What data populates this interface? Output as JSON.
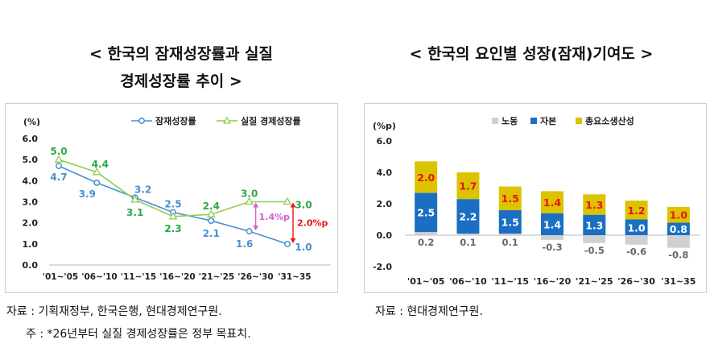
{
  "left_title": {
    "line1": "< 한국의 잠재성장률과 실질",
    "line2": "경제성장률 추이 >"
  },
  "right_title": "< 한국의 요인별 성장(잠재)기여도 >",
  "notes": {
    "left_source": "자료 : 기획재정부, 한국은행, 현대경제연구원.",
    "left_footnote": "주 : *26년부터 실질 경제성장률은 정부 목표치.",
    "right_source": "자료 : 현대경제연구원."
  },
  "chart_data": [
    {
      "type": "line",
      "ylabel": "(%)",
      "ylim": [
        0,
        6
      ],
      "yticks": [
        "0.0",
        "1.0",
        "2.0",
        "3.0",
        "4.0",
        "5.0",
        "6.0"
      ],
      "categories": [
        "'01~'05",
        "'06~'10",
        "'11~'15",
        "'16~'20",
        "'21~'25",
        "'26~'30",
        "'31~35"
      ],
      "series": [
        {
          "name": "잠재성장률",
          "color": "#4a8fd0",
          "values": [
            4.7,
            3.9,
            3.2,
            2.5,
            2.1,
            1.6,
            1.0
          ],
          "labels": [
            "4.7",
            "3.9",
            "3.2",
            "2.5",
            "2.1",
            "1.6",
            "1.0"
          ]
        },
        {
          "name": "실질 경제성장률",
          "color": "#8fce52",
          "label_color": "#2aa84a",
          "values": [
            5.0,
            4.4,
            3.1,
            2.3,
            2.4,
            3.0,
            3.0
          ],
          "labels": [
            "5.0",
            "4.4",
            "3.1",
            "2.3",
            "2.4",
            "3.0",
            "3.0"
          ]
        }
      ],
      "annotations": [
        {
          "text": "1.4%p",
          "color": "#d35fd3"
        },
        {
          "text": "2.0%p",
          "color": "#e8141c"
        }
      ]
    },
    {
      "type": "stacked_bar",
      "ylabel": "(%p)",
      "ylim": [
        -2,
        6
      ],
      "yticks": [
        "-2.0",
        "0.0",
        "2.0",
        "4.0",
        "6.0"
      ],
      "categories": [
        "'01~'05",
        "'06~'10",
        "'11~'15",
        "'16~'20",
        "'21~'25",
        "'26~'30",
        "'31~35"
      ],
      "series": [
        {
          "name": "노동",
          "color": "#d0d0d0",
          "values": [
            0.2,
            0.1,
            0.1,
            -0.3,
            -0.5,
            -0.6,
            -0.8
          ],
          "labels": [
            "0.2",
            "0.1",
            "0.1",
            "-0.3",
            "-0.5",
            "-0.6",
            "-0.8"
          ]
        },
        {
          "name": "자본",
          "color": "#1a6fc2",
          "values": [
            2.5,
            2.2,
            1.5,
            1.4,
            1.3,
            1.0,
            0.8
          ],
          "labels": [
            "2.5",
            "2.2",
            "1.5",
            "1.4",
            "1.3",
            "1.0",
            "0.8"
          ]
        },
        {
          "name": "총요소생산성",
          "color": "#dcc300",
          "label_color": "#e8141c",
          "values": [
            2.0,
            1.7,
            1.5,
            1.4,
            1.3,
            1.2,
            1.0
          ],
          "labels": [
            "2.0",
            "1.7",
            "1.5",
            "1.4",
            "1.3",
            "1.2",
            "1.0"
          ]
        }
      ]
    }
  ]
}
